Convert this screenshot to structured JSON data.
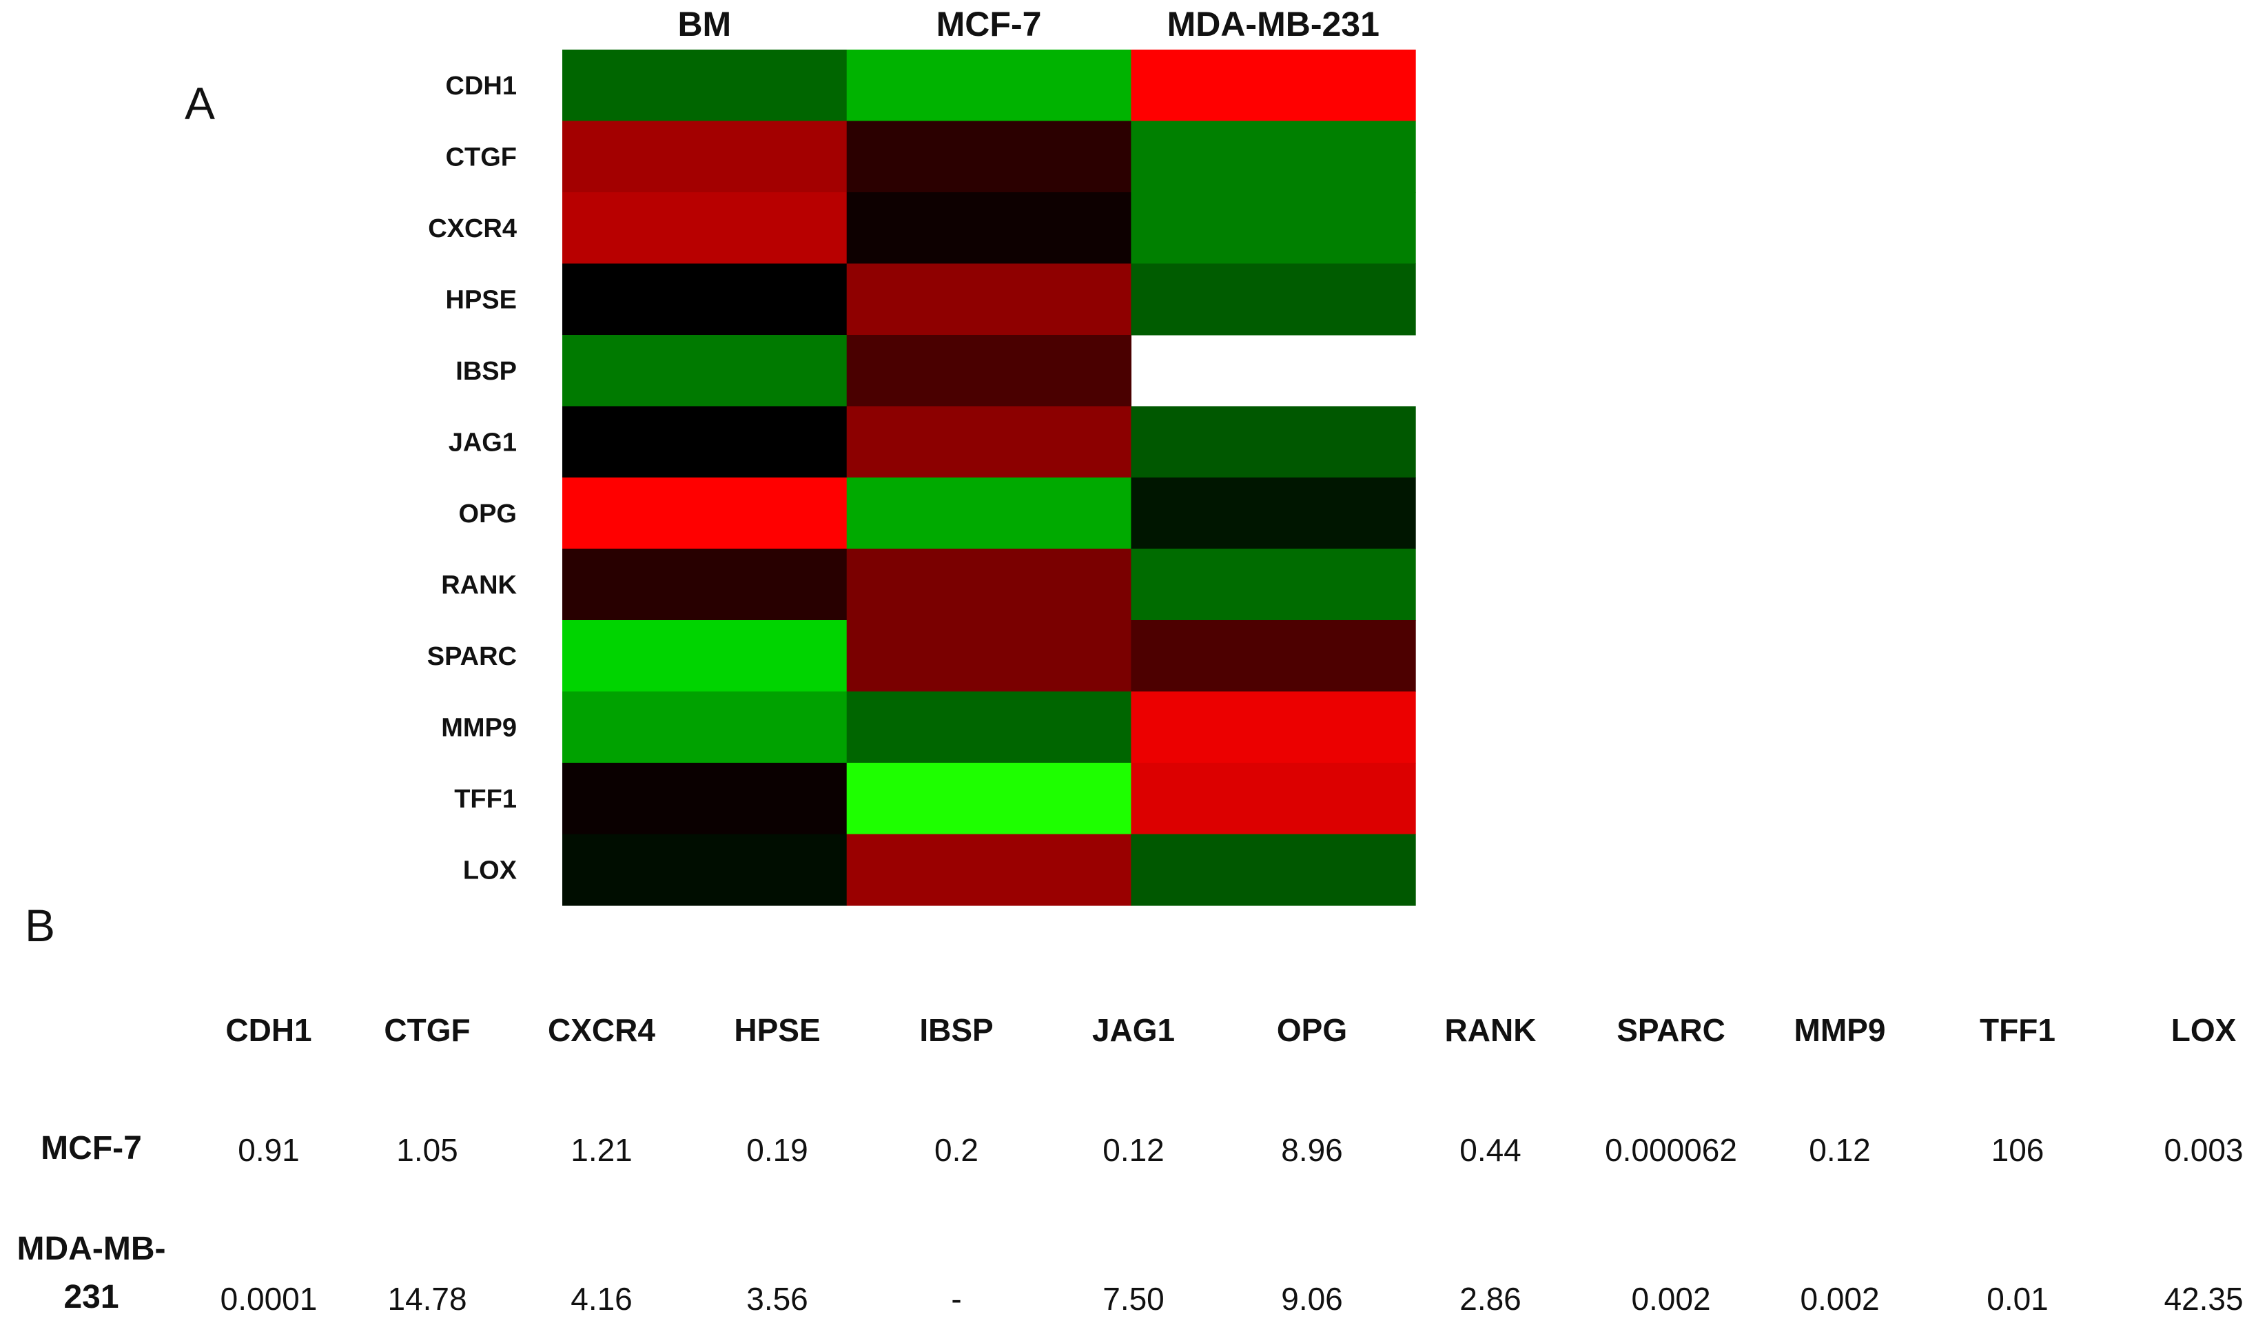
{
  "panels": {
    "a_label": "A",
    "b_label": "B"
  },
  "chart_data": {
    "type": "heatmap",
    "columns": [
      "BM",
      "MCF-7",
      "MDA-MB-231"
    ],
    "rows": [
      "CDH1",
      "CTGF",
      "CXCR4",
      "HPSE",
      "IBSP",
      "JAG1",
      "OPG",
      "RANK",
      "SPARC",
      "MMP9",
      "TFF1",
      "LOX"
    ],
    "cells": [
      [
        "#006600",
        "#00b300",
        "#ff0000"
      ],
      [
        "#a30000",
        "#2b0000",
        "#008000"
      ],
      [
        "#b80000",
        "#0d0000",
        "#008000"
      ],
      [
        "#000000",
        "#8f0000",
        "#005c00"
      ],
      [
        "#007a00",
        "#4a0000",
        null
      ],
      [
        "#000000",
        "#8c0000",
        "#005800"
      ],
      [
        "#ff0000",
        "#00aa00",
        "#001600"
      ],
      [
        "#280000",
        "#7a0000",
        "#006c00"
      ],
      [
        "#00d400",
        "#7a0000",
        "#4d0000"
      ],
      [
        "#00a200",
        "#006600",
        "#ec0000"
      ],
      [
        "#0a0000",
        "#1eff00",
        "#dc0000"
      ],
      [
        "#000d00",
        "#9a0000",
        "#005800"
      ]
    ],
    "missing_cells": [
      [
        "IBSP",
        "MDA-MB-231"
      ]
    ]
  },
  "table": {
    "headers": [
      "CDH1",
      "CTGF",
      "CXCR4",
      "HPSE",
      "IBSP",
      "JAG1",
      "OPG",
      "RANK",
      "SPARC",
      "MMP9",
      "TFF1",
      "LOX"
    ],
    "rows": [
      {
        "label_lines": [
          "MCF-7"
        ],
        "values": [
          "0.91",
          "1.05",
          "1.21",
          "0.19",
          "0.2",
          "0.12",
          "8.96",
          "0.44",
          "0.000062",
          "0.12",
          "106",
          "0.003"
        ]
      },
      {
        "label_lines": [
          "MDA-MB-",
          "231"
        ],
        "values": [
          "0.0001",
          "14.78",
          "4.16",
          "3.56",
          "-",
          "7.50",
          "9.06",
          "2.86",
          "0.002",
          "0.002",
          "0.01",
          "42.35"
        ]
      }
    ]
  }
}
